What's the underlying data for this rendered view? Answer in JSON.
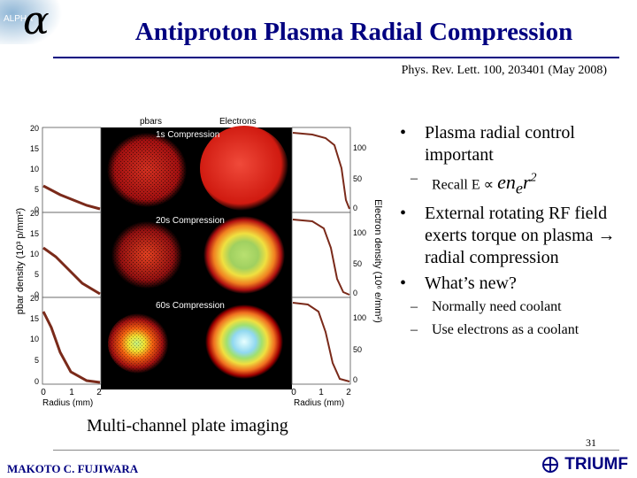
{
  "header": {
    "logo_text": "ALPHA",
    "logo_symbol": "α",
    "title": "Antiproton Plasma Radial Compression",
    "citation": "Phys. Rev. Lett. 100, 203401 (May 2008)"
  },
  "figure": {
    "col_labels": [
      "pbars",
      "Electrons"
    ],
    "rows": [
      {
        "label": "1s Compression"
      },
      {
        "label": "20s Compression"
      },
      {
        "label": "60s Compression"
      }
    ],
    "left_axis": {
      "label": "pbar density (10³ p/mm²)",
      "ticks": [
        "20",
        "15",
        "10",
        "5",
        "0"
      ]
    },
    "right_axis": {
      "label": "Electron density (10⁶ e/mm²)",
      "ticks": [
        "100",
        "50",
        "0"
      ]
    },
    "x_axis": {
      "label": "Radius (mm)",
      "ticks": [
        "0",
        "1",
        "2"
      ]
    },
    "caption": "Multi-channel plate imaging"
  },
  "bullets": [
    {
      "text": "Plasma radial control important"
    },
    {
      "text": "External rotating RF field exerts torque on plasma → radial compression"
    },
    {
      "text": "What’s new?"
    }
  ],
  "subbullets": {
    "recall_prefix": "Recall E ∝",
    "recall_formula_base": "en",
    "recall_formula_sub": "e",
    "recall_formula_r": "r",
    "recall_formula_exp": "2",
    "coolant_1": "Normally need coolant",
    "coolant_2": "Use electrons as a coolant"
  },
  "footer": {
    "page_number": "31",
    "author": "MAKOTO C. FUJIWARA",
    "org": "TRIUMF"
  }
}
